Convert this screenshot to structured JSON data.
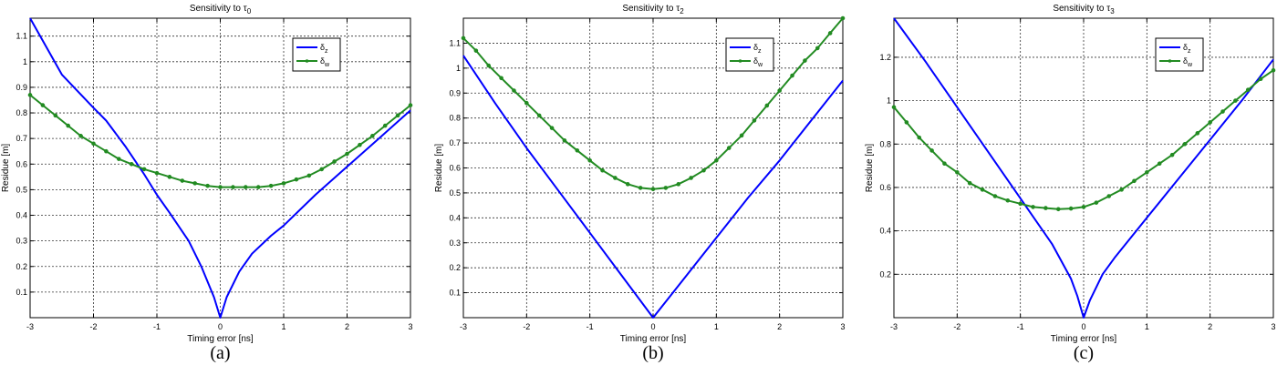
{
  "chart_data": [
    {
      "type": "line",
      "panel": "a",
      "title_prefix": "Sensitivity to τ",
      "title_sub": "0",
      "xlabel": "Timing error [ns]",
      "ylabel": "Residue [m]",
      "caption": "(a)",
      "xlim": [
        -3,
        3
      ],
      "ylim": [
        0,
        1.17
      ],
      "xticks": [
        -3,
        -2,
        -1,
        0,
        1,
        2,
        3
      ],
      "yticks": [
        0.1,
        0.2,
        0.3,
        0.4,
        0.5,
        0.6,
        0.7,
        0.8,
        0.9,
        1,
        1.1
      ],
      "grid": true,
      "legend_position": "top-right",
      "series": [
        {
          "name": "δ",
          "name_sub": "z",
          "color": "#0000ff",
          "markers": false,
          "x": [
            -3,
            -2.5,
            -2,
            -1.8,
            -1.5,
            -1.2,
            -1,
            -0.8,
            -0.5,
            -0.3,
            -0.1,
            0,
            0.1,
            0.3,
            0.5,
            0.8,
            1,
            1.5,
            2,
            2.5,
            3
          ],
          "y": [
            1.17,
            0.95,
            0.82,
            0.77,
            0.67,
            0.56,
            0.48,
            0.41,
            0.3,
            0.2,
            0.08,
            0.0,
            0.08,
            0.18,
            0.25,
            0.32,
            0.36,
            0.48,
            0.59,
            0.7,
            0.81
          ]
        },
        {
          "name": "δ",
          "name_sub": "w",
          "color": "#228b22",
          "markers": true,
          "x": [
            -3,
            -2.8,
            -2.6,
            -2.4,
            -2.2,
            -2,
            -1.8,
            -1.6,
            -1.4,
            -1.2,
            -1,
            -0.8,
            -0.6,
            -0.4,
            -0.2,
            0,
            0.2,
            0.4,
            0.6,
            0.8,
            1,
            1.2,
            1.4,
            1.6,
            1.8,
            2,
            2.2,
            2.4,
            2.6,
            2.8,
            3
          ],
          "y": [
            0.87,
            0.83,
            0.79,
            0.75,
            0.71,
            0.68,
            0.65,
            0.62,
            0.6,
            0.58,
            0.565,
            0.55,
            0.535,
            0.525,
            0.515,
            0.51,
            0.51,
            0.51,
            0.51,
            0.515,
            0.525,
            0.54,
            0.555,
            0.58,
            0.61,
            0.64,
            0.675,
            0.71,
            0.75,
            0.79,
            0.83
          ]
        }
      ]
    },
    {
      "type": "line",
      "panel": "b",
      "title_prefix": "Sensitivity to τ",
      "title_sub": "2",
      "xlabel": "Timing error [ns]",
      "ylabel": "Residue [m]",
      "caption": "(b)",
      "xlim": [
        -3,
        3
      ],
      "ylim": [
        0,
        1.2
      ],
      "xticks": [
        -3,
        -2,
        -1,
        0,
        1,
        2,
        3
      ],
      "yticks": [
        0.1,
        0.2,
        0.3,
        0.4,
        0.5,
        0.6,
        0.7,
        0.8,
        0.9,
        1,
        1.1
      ],
      "grid": true,
      "legend_position": "top-right",
      "series": [
        {
          "name": "δ",
          "name_sub": "z",
          "color": "#0000ff",
          "markers": false,
          "x": [
            -3,
            -2.5,
            -2,
            -1.5,
            -1,
            -0.5,
            0,
            0.5,
            1,
            1.5,
            2,
            2.5,
            3
          ],
          "y": [
            1.05,
            0.86,
            0.68,
            0.51,
            0.34,
            0.17,
            0.0,
            0.16,
            0.32,
            0.48,
            0.63,
            0.79,
            0.95
          ]
        },
        {
          "name": "δ",
          "name_sub": "w",
          "color": "#228b22",
          "markers": true,
          "x": [
            -3,
            -2.8,
            -2.6,
            -2.4,
            -2.2,
            -2,
            -1.8,
            -1.6,
            -1.4,
            -1.2,
            -1,
            -0.8,
            -0.6,
            -0.4,
            -0.2,
            0,
            0.2,
            0.4,
            0.6,
            0.8,
            1,
            1.2,
            1.4,
            1.6,
            1.8,
            2,
            2.2,
            2.4,
            2.6,
            2.8,
            3
          ],
          "y": [
            1.12,
            1.07,
            1.01,
            0.96,
            0.91,
            0.86,
            0.81,
            0.76,
            0.71,
            0.67,
            0.63,
            0.59,
            0.56,
            0.535,
            0.52,
            0.515,
            0.52,
            0.535,
            0.56,
            0.59,
            0.63,
            0.68,
            0.73,
            0.79,
            0.85,
            0.91,
            0.97,
            1.03,
            1.08,
            1.14,
            1.2
          ]
        }
      ]
    },
    {
      "type": "line",
      "panel": "c",
      "title_prefix": "Sensitivity to τ",
      "title_sub": "3",
      "xlabel": "Timing error [ns]",
      "ylabel": "Residue [m]",
      "caption": "(c)",
      "xlim": [
        -3,
        3
      ],
      "ylim": [
        0,
        1.38
      ],
      "xticks": [
        -3,
        -2,
        -1,
        0,
        1,
        2,
        3
      ],
      "yticks": [
        0.2,
        0.4,
        0.6,
        0.8,
        1,
        1.2
      ],
      "grid": true,
      "legend_position": "top-right",
      "series": [
        {
          "name": "δ",
          "name_sub": "z",
          "color": "#0000ff",
          "markers": false,
          "x": [
            -3,
            -2.5,
            -2,
            -1.5,
            -1,
            -0.5,
            -0.2,
            -0.1,
            0,
            0.1,
            0.3,
            0.5,
            1,
            1.5,
            2,
            2.5,
            3
          ],
          "y": [
            1.38,
            1.18,
            0.97,
            0.76,
            0.55,
            0.34,
            0.18,
            0.1,
            0.0,
            0.08,
            0.2,
            0.28,
            0.46,
            0.64,
            0.82,
            1.0,
            1.19
          ]
        },
        {
          "name": "δ",
          "name_sub": "w",
          "color": "#228b22",
          "markers": true,
          "x": [
            -3,
            -2.8,
            -2.6,
            -2.4,
            -2.2,
            -2,
            -1.8,
            -1.6,
            -1.4,
            -1.2,
            -1,
            -0.8,
            -0.6,
            -0.4,
            -0.2,
            0,
            0.2,
            0.4,
            0.6,
            0.8,
            1,
            1.2,
            1.4,
            1.6,
            1.8,
            2,
            2.2,
            2.4,
            2.6,
            2.8,
            3
          ],
          "y": [
            0.97,
            0.9,
            0.83,
            0.77,
            0.71,
            0.67,
            0.62,
            0.59,
            0.56,
            0.54,
            0.525,
            0.51,
            0.505,
            0.5,
            0.503,
            0.51,
            0.53,
            0.56,
            0.59,
            0.63,
            0.67,
            0.71,
            0.75,
            0.8,
            0.85,
            0.9,
            0.95,
            1.0,
            1.05,
            1.1,
            1.14
          ]
        }
      ]
    }
  ]
}
